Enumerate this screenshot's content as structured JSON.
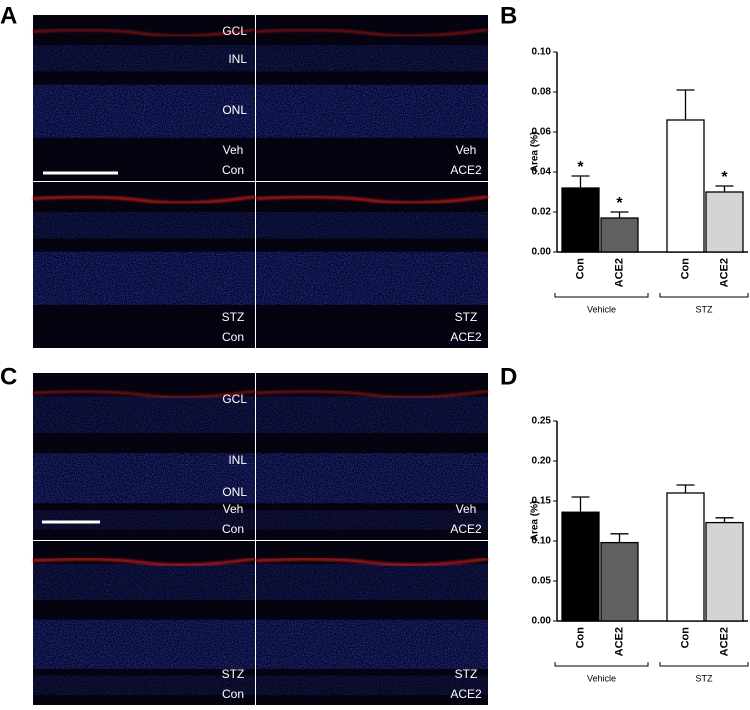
{
  "panel_labels": [
    "A",
    "B",
    "C",
    "D"
  ],
  "image_panels": [
    {
      "layer_labels": [
        "GCL",
        "INL",
        "ONL"
      ],
      "tiles": [
        [
          "Veh",
          "Con"
        ],
        [
          "Veh",
          "ACE2"
        ],
        [
          "STZ",
          "Con"
        ],
        [
          "STZ",
          "ACE2"
        ]
      ]
    },
    {
      "layer_labels": [
        "GCL",
        "INL",
        "ONL"
      ],
      "tiles": [
        [
          "Veh",
          "Con"
        ],
        [
          "Veh",
          "ACE2"
        ],
        [
          "STZ",
          "Con"
        ],
        [
          "STZ",
          "ACE2"
        ]
      ]
    }
  ],
  "chart_data": [
    {
      "type": "bar",
      "ylabel": "Area (%)",
      "categories": [
        "Con",
        "ACE2",
        "Con",
        "ACE2"
      ],
      "values": [
        0.032,
        0.017,
        0.066,
        0.03
      ],
      "errors": [
        0.006,
        0.003,
        0.015,
        0.003
      ],
      "colors": [
        "#000000",
        "#606060",
        "#ffffff",
        "#d4d4d4"
      ],
      "annotations": [
        "*",
        "*",
        null,
        "*"
      ],
      "group_labels": [
        "Vehicle",
        "STZ"
      ],
      "ylim": [
        0,
        0.1
      ],
      "yticks": [
        {
          "value": 0,
          "label": "0.00"
        },
        {
          "value": 0.02,
          "label": "0.02"
        },
        {
          "value": 0.04,
          "label": "0.04"
        },
        {
          "value": 0.06,
          "label": "0.06"
        },
        {
          "value": 0.08,
          "label": "0.08"
        },
        {
          "value": 0.1,
          "label": "0.10"
        }
      ]
    },
    {
      "type": "bar",
      "ylabel": "Area (%)",
      "categories": [
        "Con",
        "ACE2",
        "Con",
        "ACE2"
      ],
      "values": [
        0.136,
        0.098,
        0.16,
        0.123
      ],
      "errors": [
        0.019,
        0.011,
        0.01,
        0.006
      ],
      "colors": [
        "#000000",
        "#606060",
        "#ffffff",
        "#d4d4d4"
      ],
      "group_labels": [
        "Vehicle",
        "STZ"
      ],
      "ylim": [
        0,
        0.25
      ],
      "yticks": [
        {
          "value": 0,
          "label": "0.00"
        },
        {
          "value": 0.05,
          "label": "0.05"
        },
        {
          "value": 0.1,
          "label": "0.10"
        },
        {
          "value": 0.15,
          "label": "0.15"
        },
        {
          "value": 0.2,
          "label": "0.20"
        },
        {
          "value": 0.25,
          "label": "0.25"
        }
      ]
    }
  ]
}
